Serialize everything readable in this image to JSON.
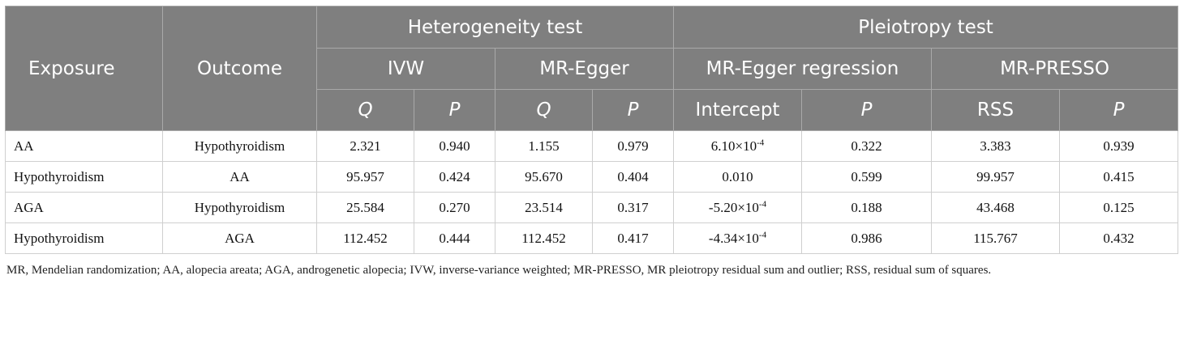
{
  "header": {
    "exposure": "Exposure",
    "outcome": "Outcome",
    "heterogeneity": "Heterogeneity test",
    "pleiotropy": "Pleiotropy test",
    "ivw": "IVW",
    "mr_egger": "MR-Egger",
    "mr_egger_regression": "MR-Egger regression",
    "mr_presso": "MR-PRESSO",
    "q1": "Q",
    "p1": "P",
    "q2": "Q",
    "p2": "P",
    "intercept": "Intercept",
    "p3": "P",
    "rss": "RSS",
    "p4": "P"
  },
  "rows": [
    {
      "exposure": "AA",
      "outcome": "Hypothyroidism",
      "ivw_q": "2.321",
      "ivw_p": "0.940",
      "egger_q": "1.155",
      "egger_p": "0.979",
      "intercept_base": "6.10×10",
      "intercept_exp": "-4",
      "reg_p": "0.322",
      "rss": "3.383",
      "presso_p": "0.939"
    },
    {
      "exposure": "Hypothyroidism",
      "outcome": "AA",
      "ivw_q": "95.957",
      "ivw_p": "0.424",
      "egger_q": "95.670",
      "egger_p": "0.404",
      "intercept_base": "0.010",
      "intercept_exp": "",
      "reg_p": "0.599",
      "rss": "99.957",
      "presso_p": "0.415"
    },
    {
      "exposure": "AGA",
      "outcome": "Hypothyroidism",
      "ivw_q": "25.584",
      "ivw_p": "0.270",
      "egger_q": "23.514",
      "egger_p": "0.317",
      "intercept_base": "-5.20×10",
      "intercept_exp": "-4",
      "reg_p": "0.188",
      "rss": "43.468",
      "presso_p": "0.125"
    },
    {
      "exposure": "Hypothyroidism",
      "outcome": "AGA",
      "ivw_q": "112.452",
      "ivw_p": "0.444",
      "egger_q": "112.452",
      "egger_p": "0.417",
      "intercept_base": "-4.34×10",
      "intercept_exp": "-4",
      "reg_p": "0.986",
      "rss": "115.767",
      "presso_p": "0.432"
    }
  ],
  "footnote": "MR, Mendelian randomization; AA, alopecia areata; AGA, androgenetic alopecia; IVW, inverse-variance weighted; MR-PRESSO, MR pleiotropy residual sum and outlier; RSS, residual sum of squares."
}
